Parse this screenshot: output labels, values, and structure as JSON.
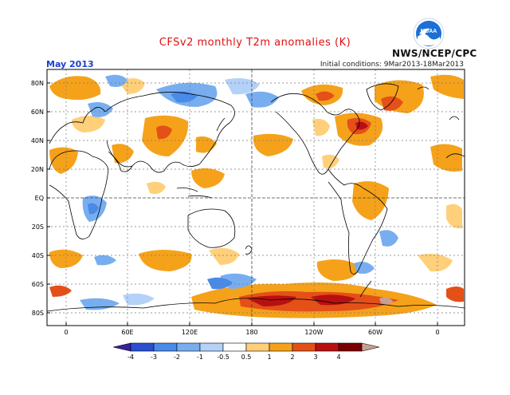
{
  "header": {
    "title": "CFSv2 monthly T2m anomalies (K)",
    "period": "May 2013",
    "initial_conditions": "Initial conditions: 9Mar2013-18Mar2013",
    "agency": "NWS/NCEP/CPC",
    "logo_text": "NOAA"
  },
  "axes": {
    "lat_labels": [
      "80N",
      "60N",
      "40N",
      "20N",
      "EQ",
      "20S",
      "40S",
      "60S",
      "80S"
    ],
    "lon_labels": [
      "0",
      "60E",
      "120E",
      "180",
      "120W",
      "60W",
      "0"
    ]
  },
  "legend": {
    "boundaries": [
      "-4",
      "-3",
      "-2",
      "-1",
      "-0.5",
      "0.5",
      "1",
      "2",
      "3",
      "4"
    ],
    "colors": [
      "#3a1fa0",
      "#2950d0",
      "#4a8ae8",
      "#78aef0",
      "#b4d2f8",
      "#ffffff",
      "#ffcf7a",
      "#f5a21a",
      "#e45018",
      "#b81010",
      "#7a0000",
      "#c8a090"
    ]
  },
  "colors": {
    "title": "#e01010",
    "period": "#1a3fd0",
    "land_outline": "#000000",
    "grid": "#777777"
  }
}
